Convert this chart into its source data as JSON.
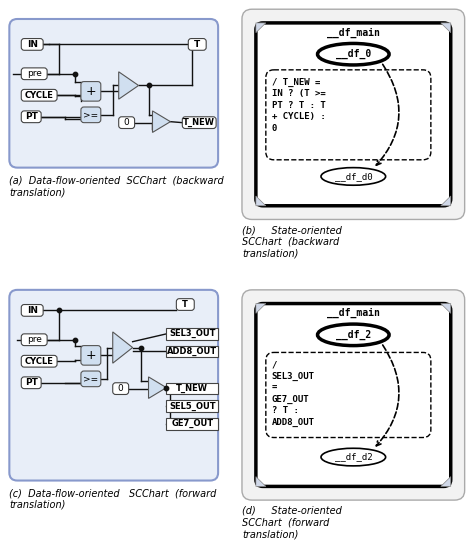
{
  "bg_color": "#ffffff",
  "light_blue": "#d0dff0",
  "panel_bg": "#e8eef8",
  "panel_border": "#8899cc",
  "state_bg": "#f8f8f8",
  "state_border": "#999999",
  "caption_a": "(a)  Data-flow-oriented  SCChart  (backward\ntranslation)",
  "caption_b": "(b)     State-oriented\nSCChart  (backward\ntranslation)",
  "caption_c": "(c)  Data-flow-oriented   SCChart  (forward\ntranslation)",
  "caption_d": "(d)     State-oriented\nSCChart  (forward\ntranslation)",
  "text_b": "/ T_NEW =\nIN ? (T >=\nPT ? T : T\n+ CYCLE) :\n0",
  "text_d": "/\nSEL3_OUT\n=\nGE7_OUT\n? T :\nADD8_OUT"
}
